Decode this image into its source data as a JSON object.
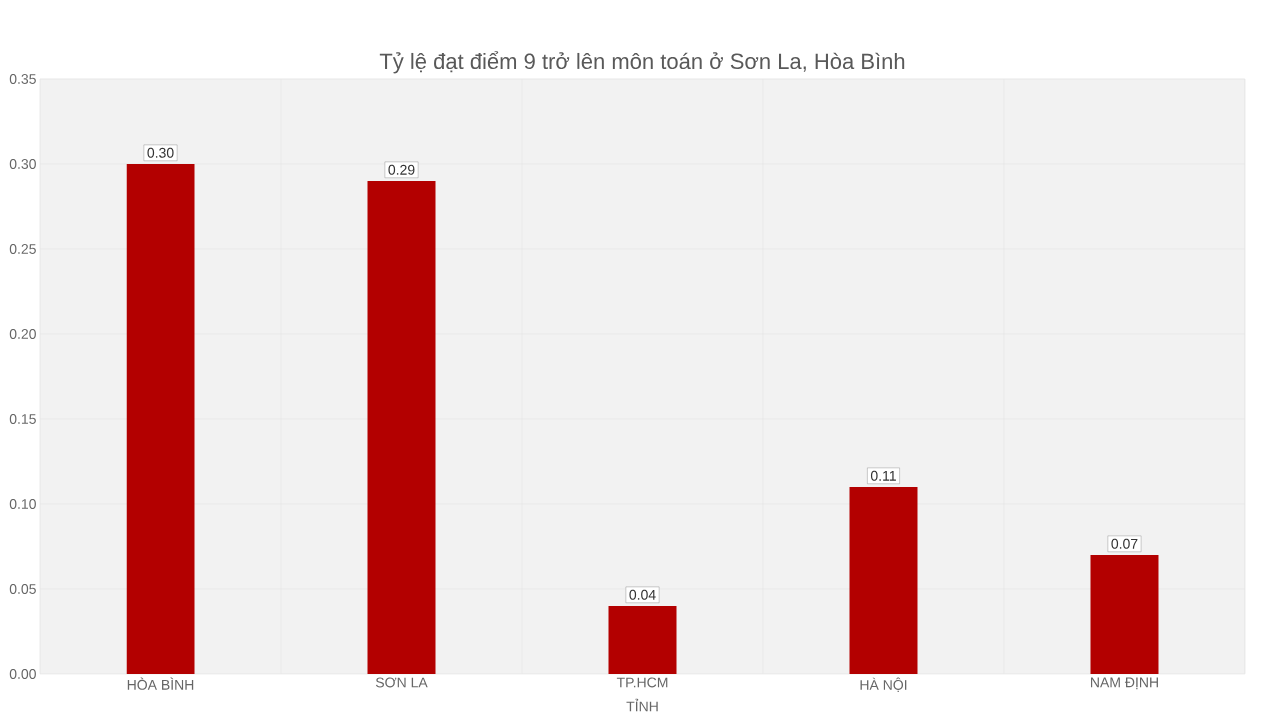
{
  "chart_data": {
    "type": "bar",
    "title": "Tỷ lệ đạt điểm 9 trở lên môn toán ở Sơn La, Hòa Bình",
    "xlabel": "TỈNH",
    "categories": [
      "HÒA BÌNH",
      "SƠN LA",
      "TP.HCM",
      "HÀ NỘI",
      "NAM ĐỊNH"
    ],
    "values": [
      0.3,
      0.29,
      0.04,
      0.11,
      0.07
    ],
    "value_labels": [
      "0.30",
      "0.29",
      "0.04",
      "0.11",
      "0.07"
    ],
    "color": "#b30000",
    "ylim": [
      0,
      0.35
    ],
    "yticks": [
      {
        "value": 0,
        "label": "0.00"
      },
      {
        "value": 0.05,
        "label": "0.05"
      },
      {
        "value": 0.1,
        "label": "0.10"
      },
      {
        "value": 0.15,
        "label": "0.15"
      },
      {
        "value": 0.2,
        "label": "0.20"
      },
      {
        "value": 0.25,
        "label": "0.25"
      },
      {
        "value": 0.3,
        "label": "0.30"
      },
      {
        "value": 0.35,
        "label": "0.35"
      }
    ],
    "grid": true
  }
}
